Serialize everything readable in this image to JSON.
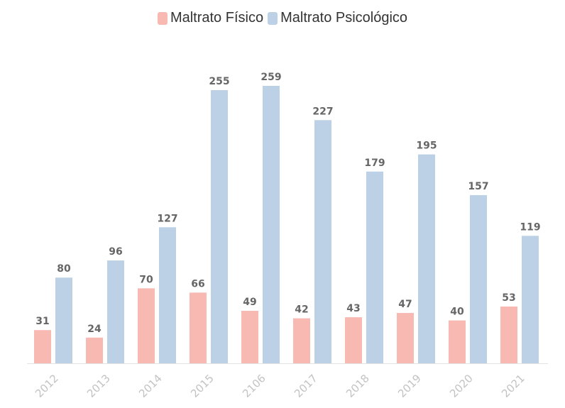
{
  "chart_data": {
    "type": "bar",
    "title": "",
    "xlabel": "",
    "ylabel": "",
    "categories": [
      "2012",
      "2013",
      "2014",
      "2015",
      "2106",
      "2017",
      "2018",
      "2019",
      "2020",
      "2021"
    ],
    "series": [
      {
        "name": "Maltrato Físico",
        "color": "#f8b9b2",
        "values": [
          31,
          24,
          70,
          66,
          49,
          42,
          43,
          47,
          40,
          53
        ]
      },
      {
        "name": "Maltrato Psicológico",
        "color": "#bcd1e6",
        "values": [
          80,
          96,
          127,
          255,
          259,
          227,
          179,
          195,
          157,
          119
        ]
      }
    ],
    "ylim": [
      0,
      259
    ],
    "grid": false,
    "legend": "top-center",
    "data_labels": true,
    "tick_label_rotation": "diagonal"
  }
}
